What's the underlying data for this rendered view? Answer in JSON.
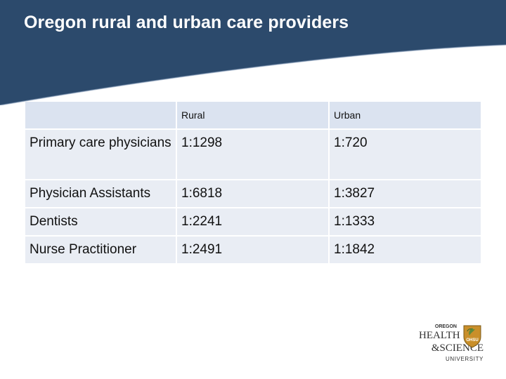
{
  "slide": {
    "title": "Oregon rural and urban care providers"
  },
  "table": {
    "columns": [
      "",
      "Rural",
      "Urban"
    ],
    "rows": [
      {
        "label": "Primary care physicians",
        "rural": "1:1298",
        "urban": "1:720"
      },
      {
        "label": "Physician Assistants",
        "rural": "1:6818",
        "urban": "1:3827"
      },
      {
        "label": "Dentists",
        "rural": "1:2241",
        "urban": "1:1333"
      },
      {
        "label": "Nurse Practitioner",
        "rural": "1:2491",
        "urban": "1:1842"
      }
    ]
  },
  "logo": {
    "line1": "OREGON",
    "line2": "HEALTH",
    "line3": "&SCIENCE",
    "line4": "UNIVERSITY",
    "badge": "OHSU"
  },
  "colors": {
    "title_band": "#2c4a6c",
    "header_row": "#dbe3f0",
    "body_row": "#e9edf4"
  }
}
